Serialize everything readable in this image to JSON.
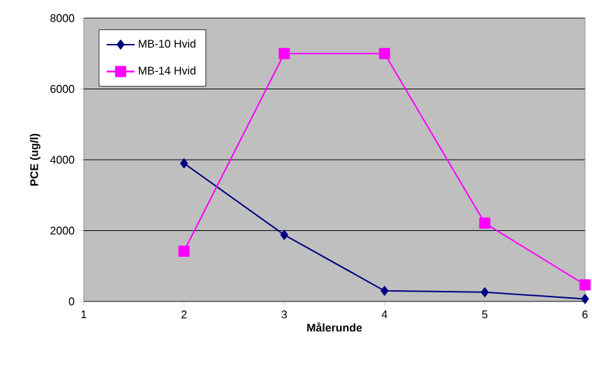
{
  "chart_data": {
    "type": "line",
    "xlabel": "Målerunde",
    "ylabel": "PCE (ug/l)",
    "x": [
      2,
      3,
      4,
      5,
      6
    ],
    "series": [
      {
        "name": "MB-10 Hvid",
        "color": "#000080",
        "marker": "diamond",
        "values": [
          3900,
          1880,
          300,
          260,
          70
        ]
      },
      {
        "name": "MB-14 Hvid",
        "color": "#ff00ff",
        "marker": "square",
        "values": [
          1420,
          7000,
          7000,
          2210,
          470
        ]
      }
    ],
    "xlim": [
      1,
      6
    ],
    "xticks": [
      1,
      2,
      3,
      4,
      5,
      6
    ],
    "ylim": [
      0,
      8000
    ],
    "yticks": [
      0,
      2000,
      4000,
      6000,
      8000
    ],
    "grid": "y",
    "legend": "top left",
    "line_style": "solid"
  }
}
